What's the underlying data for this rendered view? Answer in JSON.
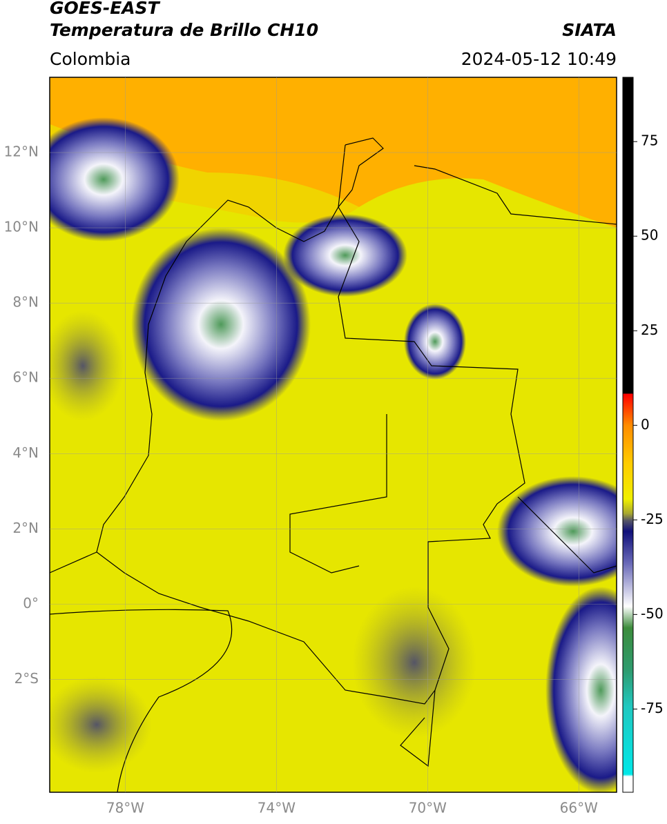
{
  "header": {
    "title": "GOES-EAST",
    "subtitle": "Temperatura de Brillo CH10",
    "source": "SIATA",
    "region": "Colombia",
    "datetime": "2024-05-12 10:49"
  },
  "chart_data": {
    "type": "map",
    "xlim": [
      -80,
      -65
    ],
    "ylim": [
      -5,
      14
    ],
    "xticks": [
      {
        "value": -78,
        "label": "78°W"
      },
      {
        "value": -74,
        "label": "74°W"
      },
      {
        "value": -70,
        "label": "70°W"
      },
      {
        "value": -66,
        "label": "66°W"
      }
    ],
    "yticks": [
      {
        "value": 12,
        "label": "12°N"
      },
      {
        "value": 10,
        "label": "10°N"
      },
      {
        "value": 8,
        "label": "8°N"
      },
      {
        "value": 6,
        "label": "6°N"
      },
      {
        "value": 4,
        "label": "4°N"
      },
      {
        "value": 2,
        "label": "2°N"
      },
      {
        "value": 0,
        "label": "0°"
      },
      {
        "value": -2,
        "label": "2°S"
      }
    ],
    "grid": true,
    "colorbar": {
      "lim": [
        -97,
        92
      ],
      "ticks": [
        75,
        50,
        25,
        0,
        -25,
        -50,
        -75
      ]
    }
  }
}
